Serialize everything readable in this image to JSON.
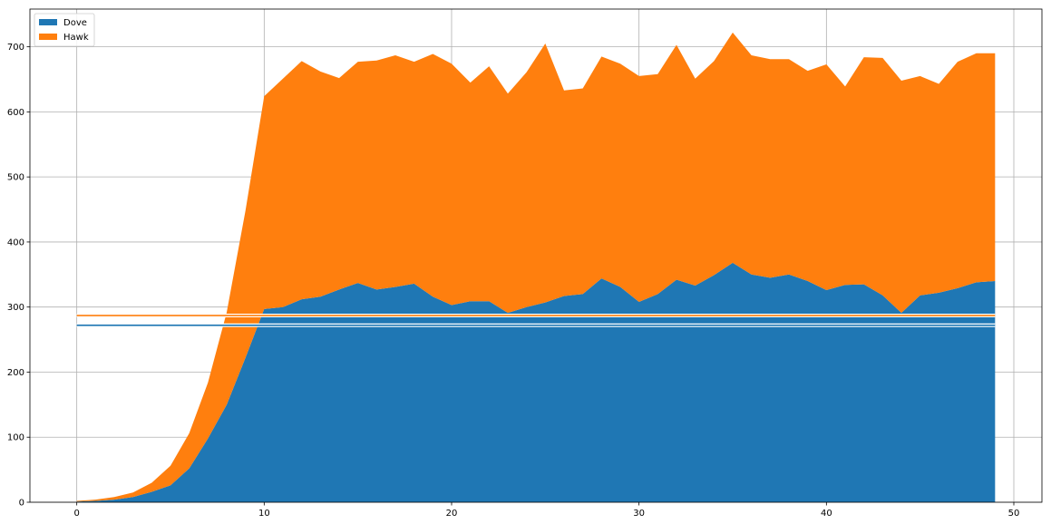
{
  "chart_data": {
    "type": "area",
    "stacked": true,
    "x": [
      0,
      1,
      2,
      3,
      4,
      5,
      6,
      7,
      8,
      9,
      10,
      11,
      12,
      13,
      14,
      15,
      16,
      17,
      18,
      19,
      20,
      21,
      22,
      23,
      24,
      25,
      26,
      27,
      28,
      29,
      30,
      31,
      32,
      33,
      34,
      35,
      36,
      37,
      38,
      39,
      40,
      41,
      42,
      43,
      44,
      45,
      46,
      47,
      48,
      49
    ],
    "series": [
      {
        "name": "Dove",
        "color": "#1f77b4",
        "values": [
          1,
          2,
          4,
          8,
          16,
          26,
          52,
          98,
          150,
          222,
          297,
          300,
          312,
          316,
          327,
          337,
          327,
          331,
          336,
          316,
          303,
          309,
          309,
          291,
          300,
          307,
          317,
          320,
          344,
          331,
          308,
          320,
          342,
          333,
          349,
          368,
          350,
          345,
          350,
          340,
          326,
          334,
          335,
          318,
          291,
          318,
          322,
          329,
          338,
          340
        ]
      },
      {
        "name": "Hawk",
        "color": "#ff7f0e",
        "values": [
          1,
          2,
          4,
          7,
          14,
          30,
          54,
          86,
          142,
          226,
          327,
          351,
          366,
          346,
          325,
          340,
          352,
          356,
          341,
          373,
          371,
          336,
          361,
          337,
          361,
          398,
          316,
          316,
          341,
          343,
          347,
          338,
          361,
          318,
          329,
          354,
          337,
          336,
          331,
          323,
          347,
          305,
          349,
          365,
          357,
          337,
          321,
          348,
          352,
          350
        ]
      }
    ],
    "hlines": [
      {
        "y": 287,
        "color": "#ff7f0e"
      },
      {
        "y": 272,
        "color": "#1f77b4"
      }
    ],
    "xlim": [
      -2.5,
      51.5
    ],
    "ylim": [
      0,
      758
    ],
    "xticks": [
      0,
      10,
      20,
      30,
      40,
      50
    ],
    "yticks": [
      0,
      100,
      200,
      300,
      400,
      500,
      600,
      700
    ],
    "grid": true,
    "legend_position": "top-left",
    "title": "",
    "xlabel": "",
    "ylabel": ""
  }
}
